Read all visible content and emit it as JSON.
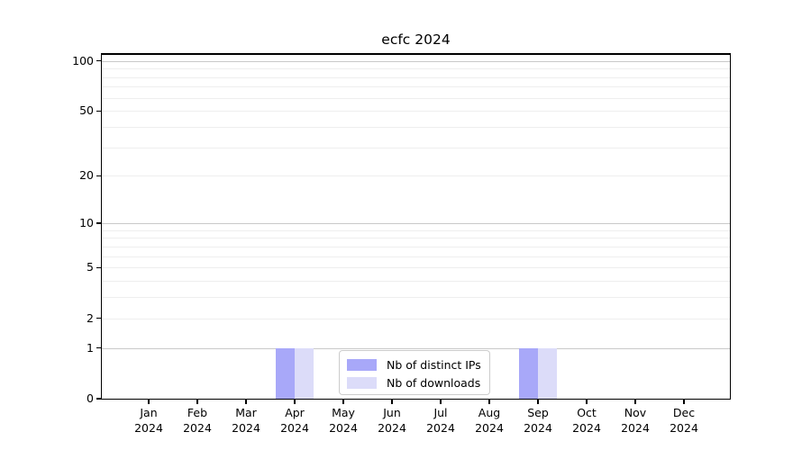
{
  "chart_data": {
    "type": "bar",
    "title": "ecfc 2024",
    "x": {
      "categories": [
        "Jan",
        "Feb",
        "Mar",
        "Apr",
        "May",
        "Jun",
        "Jul",
        "Aug",
        "Sep",
        "Oct",
        "Nov",
        "Dec"
      ],
      "year": "2024"
    },
    "y": {
      "scale": "log1p",
      "labeled_ticks": [
        0,
        1,
        2,
        5,
        10,
        20,
        50,
        100
      ],
      "major_gridlines": [
        1,
        10,
        100
      ],
      "minor_gridlines": [
        2,
        3,
        4,
        5,
        6,
        7,
        8,
        9,
        20,
        30,
        40,
        50,
        60,
        70,
        80,
        90
      ],
      "axis_max": 110,
      "ylim": [
        0,
        110
      ]
    },
    "series": [
      {
        "name": "Nb of distinct IPs",
        "color": "#a8a8f9",
        "values": [
          0,
          0,
          0,
          1,
          0,
          0,
          0,
          0,
          1,
          0,
          0,
          0
        ]
      },
      {
        "name": "Nb of downloads",
        "color": "#dcdcf9",
        "values": [
          0,
          0,
          0,
          1,
          0,
          0,
          0,
          0,
          1,
          0,
          0,
          0
        ]
      }
    ],
    "legend": {
      "position": "bottom-center",
      "entries": [
        "Nb of distinct IPs",
        "Nb of downloads"
      ]
    },
    "grid": "horizontal",
    "colors": {
      "major_grid": "#c9c9c9",
      "minor_grid": "#eeeeee",
      "axis": "#000000",
      "background": "#ffffff",
      "legend_border": "#cccccc"
    }
  }
}
